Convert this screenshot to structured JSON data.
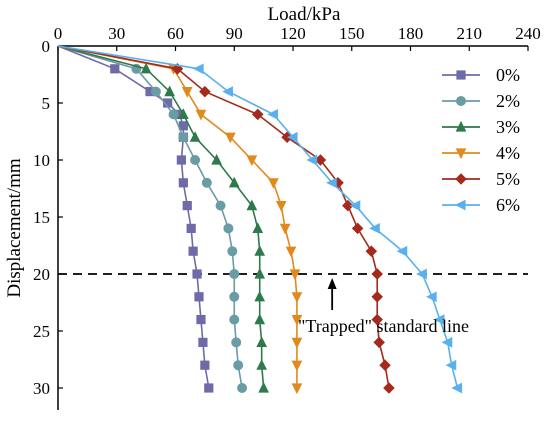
{
  "chart_data": {
    "type": "line",
    "xlabel": "Load/kPa",
    "ylabel": "Displacement/mm",
    "xlim": [
      0,
      240
    ],
    "ylim": [
      0,
      30
    ],
    "x_axis_position": "top",
    "y_axis_inverted": true,
    "x_ticks": [
      "0",
      "30",
      "60",
      "90",
      "120",
      "150",
      "180",
      "210",
      "240"
    ],
    "y_ticks": [
      "0",
      "5",
      "10",
      "15",
      "20",
      "25",
      "30"
    ],
    "grid": false,
    "legend_position": "right",
    "series": [
      {
        "name": "0%",
        "color": "#6f6aa8",
        "marker": "square",
        "points": [
          [
            0,
            0
          ],
          [
            29,
            2
          ],
          [
            47,
            4
          ],
          [
            56,
            5
          ],
          [
            62,
            6
          ],
          [
            64,
            7
          ],
          [
            64,
            8
          ],
          [
            63,
            10
          ],
          [
            64,
            12
          ],
          [
            66,
            14
          ],
          [
            68,
            16
          ],
          [
            69,
            18
          ],
          [
            71,
            20
          ],
          [
            72,
            22
          ],
          [
            73,
            24
          ],
          [
            74,
            26
          ],
          [
            75,
            28
          ],
          [
            77,
            30
          ]
        ]
      },
      {
        "name": "2%",
        "color": "#6a9ca4",
        "marker": "circle",
        "points": [
          [
            0,
            0
          ],
          [
            40,
            2
          ],
          [
            50,
            4
          ],
          [
            59,
            6
          ],
          [
            64,
            8
          ],
          [
            70,
            10
          ],
          [
            76,
            12
          ],
          [
            83,
            14
          ],
          [
            87,
            16
          ],
          [
            89,
            18
          ],
          [
            90,
            20
          ],
          [
            90,
            22
          ],
          [
            90,
            24
          ],
          [
            91,
            26
          ],
          [
            92,
            28
          ],
          [
            94,
            30
          ]
        ]
      },
      {
        "name": "3%",
        "color": "#2e7a4a",
        "marker": "triangle",
        "points": [
          [
            0,
            0
          ],
          [
            45,
            2
          ],
          [
            57,
            4
          ],
          [
            64,
            6
          ],
          [
            70,
            8
          ],
          [
            81,
            10
          ],
          [
            90,
            12
          ],
          [
            99,
            14
          ],
          [
            102,
            16
          ],
          [
            103,
            18
          ],
          [
            103,
            20
          ],
          [
            103,
            22
          ],
          [
            103,
            24
          ],
          [
            104,
            26
          ],
          [
            104,
            28
          ],
          [
            105,
            30
          ]
        ]
      },
      {
        "name": "4%",
        "color": "#e08a1e",
        "marker": "triangle-down",
        "points": [
          [
            0,
            0
          ],
          [
            59,
            2
          ],
          [
            66,
            4
          ],
          [
            73,
            6
          ],
          [
            88,
            8
          ],
          [
            99,
            10
          ],
          [
            110,
            12
          ],
          [
            114,
            14
          ],
          [
            116,
            16
          ],
          [
            119,
            18
          ],
          [
            121,
            20
          ],
          [
            122,
            22
          ],
          [
            122,
            24
          ],
          [
            122,
            26
          ],
          [
            122,
            28
          ],
          [
            122,
            30
          ]
        ]
      },
      {
        "name": "5%",
        "color": "#a52a1e",
        "marker": "diamond",
        "points": [
          [
            0,
            0
          ],
          [
            61,
            2
          ],
          [
            75,
            4
          ],
          [
            102,
            6
          ],
          [
            117,
            8
          ],
          [
            134,
            10
          ],
          [
            143,
            12
          ],
          [
            148,
            14
          ],
          [
            153,
            16
          ],
          [
            160,
            18
          ],
          [
            163,
            20
          ],
          [
            163,
            22
          ],
          [
            163,
            24
          ],
          [
            164,
            26
          ],
          [
            167,
            28
          ],
          [
            169,
            30
          ]
        ]
      },
      {
        "name": "6%",
        "color": "#5ab0ee",
        "marker": "triangle-left",
        "points": [
          [
            0,
            0
          ],
          [
            72,
            2
          ],
          [
            87,
            4
          ],
          [
            110,
            6
          ],
          [
            120,
            8
          ],
          [
            130,
            10
          ],
          [
            140,
            12
          ],
          [
            152,
            14
          ],
          [
            162,
            16
          ],
          [
            176,
            18
          ],
          [
            186,
            20
          ],
          [
            191,
            22
          ],
          [
            195,
            24
          ],
          [
            199,
            26
          ],
          [
            201,
            28
          ],
          [
            204,
            30
          ]
        ]
      }
    ],
    "annotations": [
      {
        "text": "\"Trapped\" standard line",
        "reference_line": {
          "y": 20,
          "style": "dashed"
        },
        "arrow_at_x": 140
      }
    ]
  }
}
